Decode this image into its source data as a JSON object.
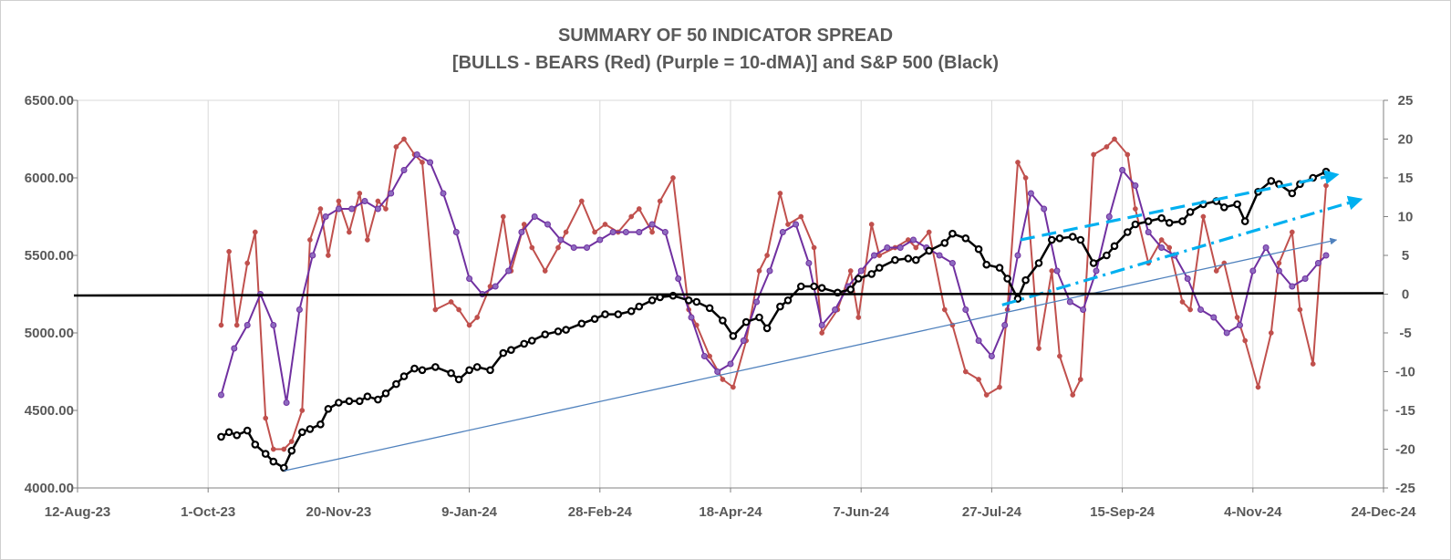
{
  "chart_data": {
    "type": "line",
    "title": "SUMMARY OF 50 INDICATOR SPREAD",
    "subtitle": "[BULLS - BEARS (Red) (Purple = 10-dMA)] and S&P 500 (Black)",
    "x_ticks": [
      "12-Aug-23",
      "1-Oct-23",
      "20-Nov-23",
      "9-Jan-24",
      "28-Feb-24",
      "18-Apr-24",
      "7-Jun-24",
      "27-Jul-24",
      "15-Sep-24",
      "4-Nov-24",
      "24-Dec-24"
    ],
    "left_axis": {
      "ylim": [
        4000,
        6500
      ],
      "ticks": [
        "4000.00",
        "4500.00",
        "5000.00",
        "5500.00",
        "6000.00",
        "6500.00"
      ]
    },
    "right_axis": {
      "ylim": [
        -25,
        25
      ],
      "ticks": [
        "-25",
        "-20",
        "-15",
        "-10",
        "-5",
        "0",
        "5",
        "10",
        "15",
        "20",
        "25"
      ]
    },
    "grid": "vertical",
    "colors": {
      "spread": "#c0504d",
      "ma": "#7030a0",
      "sp500": "#000000",
      "trend": "#4f81bd",
      "channel": "#00b0f0"
    },
    "series": [
      {
        "name": "BULLS - BEARS (Red)",
        "axis": "right",
        "x": [
          "2023-10-06",
          "2023-10-09",
          "2023-10-12",
          "2023-10-16",
          "2023-10-19",
          "2023-10-23",
          "2023-10-26",
          "2023-10-30",
          "2023-11-02",
          "2023-11-06",
          "2023-11-09",
          "2023-11-13",
          "2023-11-16",
          "2023-11-20",
          "2023-11-24",
          "2023-11-28",
          "2023-12-01",
          "2023-12-05",
          "2023-12-08",
          "2023-12-12",
          "2023-12-15",
          "2023-12-19",
          "2023-12-22",
          "2023-12-27",
          "2024-01-02",
          "2024-01-05",
          "2024-01-09",
          "2024-01-12",
          "2024-01-17",
          "2024-01-22",
          "2024-01-25",
          "2024-01-30",
          "2024-02-02",
          "2024-02-07",
          "2024-02-12",
          "2024-02-15",
          "2024-02-21",
          "2024-02-26",
          "2024-03-01",
          "2024-03-06",
          "2024-03-11",
          "2024-03-14",
          "2024-03-19",
          "2024-03-22",
          "2024-03-27",
          "2024-04-02",
          "2024-04-05",
          "2024-04-10",
          "2024-04-15",
          "2024-04-19",
          "2024-04-24",
          "2024-04-29",
          "2024-05-02",
          "2024-05-07",
          "2024-05-10",
          "2024-05-15",
          "2024-05-20",
          "2024-05-23",
          "2024-05-29",
          "2024-06-03",
          "2024-06-06",
          "2024-06-11",
          "2024-06-14",
          "2024-06-20",
          "2024-06-25",
          "2024-06-28",
          "2024-07-03",
          "2024-07-09",
          "2024-07-12",
          "2024-07-17",
          "2024-07-22",
          "2024-07-25",
          "2024-07-30",
          "2024-08-02",
          "2024-08-06",
          "2024-08-09",
          "2024-08-14",
          "2024-08-19",
          "2024-08-22",
          "2024-08-27",
          "2024-08-30",
          "2024-09-04",
          "2024-09-09",
          "2024-09-12",
          "2024-09-17",
          "2024-09-20",
          "2024-09-25",
          "2024-09-30",
          "2024-10-03",
          "2024-10-08",
          "2024-10-11",
          "2024-10-16",
          "2024-10-21",
          "2024-10-24",
          "2024-10-29",
          "2024-11-01",
          "2024-11-06",
          "2024-11-11",
          "2024-11-14",
          "2024-11-19",
          "2024-11-22",
          "2024-11-27",
          "2024-12-02"
        ],
        "values": [
          -4,
          5.5,
          -4,
          4,
          8,
          -16,
          -20,
          -20,
          -19,
          -15,
          7,
          11,
          5,
          12,
          8,
          13,
          7,
          12,
          11,
          19,
          20,
          18,
          17,
          -2,
          -1,
          -2,
          -4,
          -3,
          1,
          10,
          3,
          9,
          6,
          3,
          6,
          8,
          12,
          8,
          9,
          8,
          10,
          11,
          8,
          12,
          15,
          -2,
          -4,
          -8,
          -11,
          -12,
          -6,
          3,
          5,
          13,
          9,
          10,
          6,
          -5,
          -2,
          3,
          -3,
          9,
          5,
          6,
          7,
          6,
          8,
          -2,
          -4,
          -10,
          -11,
          -13,
          -12,
          -2,
          17,
          15,
          -7,
          3,
          -8,
          -13,
          -11,
          18,
          19,
          20,
          18,
          11,
          4,
          7,
          6,
          -1,
          -2,
          10,
          3,
          4,
          -3,
          -6,
          -12,
          -5,
          4,
          8,
          -2,
          -9,
          14
        ]
      },
      {
        "name": "Purple = 10-dMA",
        "axis": "right",
        "x": [
          "2023-10-06",
          "2023-10-11",
          "2023-10-16",
          "2023-10-21",
          "2023-10-26",
          "2023-10-31",
          "2023-11-05",
          "2023-11-10",
          "2023-11-15",
          "2023-11-20",
          "2023-11-25",
          "2023-11-30",
          "2023-12-05",
          "2023-12-10",
          "2023-12-15",
          "2023-12-20",
          "2023-12-25",
          "2023-12-30",
          "2024-01-04",
          "2024-01-09",
          "2024-01-14",
          "2024-01-19",
          "2024-01-24",
          "2024-01-29",
          "2024-02-03",
          "2024-02-08",
          "2024-02-13",
          "2024-02-18",
          "2024-02-23",
          "2024-02-28",
          "2024-03-04",
          "2024-03-09",
          "2024-03-14",
          "2024-03-19",
          "2024-03-24",
          "2024-03-29",
          "2024-04-03",
          "2024-04-08",
          "2024-04-13",
          "2024-04-18",
          "2024-04-23",
          "2024-04-28",
          "2024-05-03",
          "2024-05-08",
          "2024-05-13",
          "2024-05-18",
          "2024-05-23",
          "2024-05-28",
          "2024-06-02",
          "2024-06-07",
          "2024-06-12",
          "2024-06-17",
          "2024-06-22",
          "2024-06-27",
          "2024-07-02",
          "2024-07-07",
          "2024-07-12",
          "2024-07-17",
          "2024-07-22",
          "2024-07-27",
          "2024-08-01",
          "2024-08-06",
          "2024-08-11",
          "2024-08-16",
          "2024-08-21",
          "2024-08-26",
          "2024-08-31",
          "2024-09-05",
          "2024-09-10",
          "2024-09-15",
          "2024-09-20",
          "2024-09-25",
          "2024-09-30",
          "2024-10-05",
          "2024-10-10",
          "2024-10-15",
          "2024-10-20",
          "2024-10-25",
          "2024-10-30",
          "2024-11-04",
          "2024-11-09",
          "2024-11-14",
          "2024-11-19",
          "2024-11-24",
          "2024-11-29",
          "2024-12-02"
        ],
        "values": [
          -13,
          -7,
          -4,
          0,
          -4,
          -14,
          -2,
          5,
          10,
          11,
          11,
          12,
          11,
          13,
          16,
          18,
          17,
          13,
          8,
          2,
          0,
          1,
          3,
          8,
          10,
          9,
          7,
          6,
          6,
          7,
          8,
          8,
          8,
          9,
          8,
          2,
          -3,
          -8,
          -10,
          -9,
          -6,
          -1,
          3,
          8,
          9,
          4,
          -4,
          -2,
          1,
          3,
          5,
          6,
          6,
          7,
          6,
          5,
          4,
          -2,
          -6,
          -8,
          -4,
          5,
          13,
          11,
          3,
          -1,
          -2,
          3,
          10,
          16,
          14,
          8,
          6,
          5,
          2,
          -2,
          -3,
          -5,
          -4,
          3,
          6,
          3,
          1,
          2,
          4,
          5
        ]
      },
      {
        "name": "S&P 500 (Black)",
        "axis": "left",
        "x": [
          "2023-10-06",
          "2023-10-09",
          "2023-10-12",
          "2023-10-16",
          "2023-10-19",
          "2023-10-23",
          "2023-10-26",
          "2023-10-30",
          "2023-11-02",
          "2023-11-06",
          "2023-11-09",
          "2023-11-13",
          "2023-11-16",
          "2023-11-20",
          "2023-11-24",
          "2023-11-28",
          "2023-12-01",
          "2023-12-05",
          "2023-12-08",
          "2023-12-12",
          "2023-12-15",
          "2023-12-19",
          "2023-12-22",
          "2023-12-27",
          "2024-01-02",
          "2024-01-05",
          "2024-01-09",
          "2024-01-12",
          "2024-01-17",
          "2024-01-22",
          "2024-01-25",
          "2024-01-30",
          "2024-02-02",
          "2024-02-07",
          "2024-02-12",
          "2024-02-15",
          "2024-02-21",
          "2024-02-26",
          "2024-03-01",
          "2024-03-06",
          "2024-03-11",
          "2024-03-14",
          "2024-03-19",
          "2024-03-22",
          "2024-03-27",
          "2024-04-02",
          "2024-04-05",
          "2024-04-10",
          "2024-04-15",
          "2024-04-19",
          "2024-04-24",
          "2024-04-29",
          "2024-05-02",
          "2024-05-07",
          "2024-05-10",
          "2024-05-15",
          "2024-05-20",
          "2024-05-23",
          "2024-05-29",
          "2024-06-03",
          "2024-06-06",
          "2024-06-11",
          "2024-06-14",
          "2024-06-20",
          "2024-06-25",
          "2024-06-28",
          "2024-07-03",
          "2024-07-09",
          "2024-07-12",
          "2024-07-17",
          "2024-07-22",
          "2024-07-25",
          "2024-07-30",
          "2024-08-02",
          "2024-08-06",
          "2024-08-09",
          "2024-08-14",
          "2024-08-19",
          "2024-08-22",
          "2024-08-27",
          "2024-08-30",
          "2024-09-04",
          "2024-09-09",
          "2024-09-12",
          "2024-09-17",
          "2024-09-20",
          "2024-09-25",
          "2024-09-30",
          "2024-10-03",
          "2024-10-08",
          "2024-10-11",
          "2024-10-16",
          "2024-10-21",
          "2024-10-24",
          "2024-10-29",
          "2024-11-01",
          "2024-11-06",
          "2024-11-11",
          "2024-11-14",
          "2024-11-19",
          "2024-11-22",
          "2024-11-27",
          "2024-12-02"
        ],
        "values": [
          4330,
          4360,
          4340,
          4370,
          4280,
          4220,
          4170,
          4130,
          4240,
          4360,
          4380,
          4410,
          4510,
          4550,
          4560,
          4560,
          4590,
          4570,
          4610,
          4670,
          4720,
          4770,
          4760,
          4780,
          4740,
          4700,
          4760,
          4780,
          4760,
          4870,
          4890,
          4930,
          4950,
          4990,
          5010,
          5020,
          5060,
          5090,
          5120,
          5120,
          5140,
          5170,
          5210,
          5230,
          5240,
          5210,
          5200,
          5160,
          5080,
          4980,
          5070,
          5100,
          5030,
          5170,
          5210,
          5300,
          5300,
          5290,
          5260,
          5280,
          5350,
          5380,
          5420,
          5470,
          5480,
          5470,
          5530,
          5580,
          5640,
          5610,
          5540,
          5440,
          5420,
          5350,
          5220,
          5340,
          5450,
          5600,
          5610,
          5620,
          5600,
          5450,
          5500,
          5560,
          5650,
          5700,
          5720,
          5740,
          5710,
          5720,
          5780,
          5830,
          5850,
          5810,
          5830,
          5720,
          5910,
          5980,
          5960,
          5900,
          5960,
          6000,
          6040
        ]
      }
    ],
    "trendlines": [
      {
        "name": "long-term support",
        "start": [
          "2023-10-30",
          4110
        ],
        "end": [
          "2024-12-06",
          5600
        ],
        "style": "solid"
      },
      {
        "name": "channel upper",
        "start": [
          "2024-08-07",
          5600
        ],
        "end": [
          "2024-12-06",
          6020
        ],
        "style": "dashed"
      },
      {
        "name": "channel lower",
        "start": [
          "2024-07-31",
          5180
        ],
        "end": [
          "2024-12-15",
          5860
        ],
        "style": "dash-dot"
      }
    ]
  }
}
